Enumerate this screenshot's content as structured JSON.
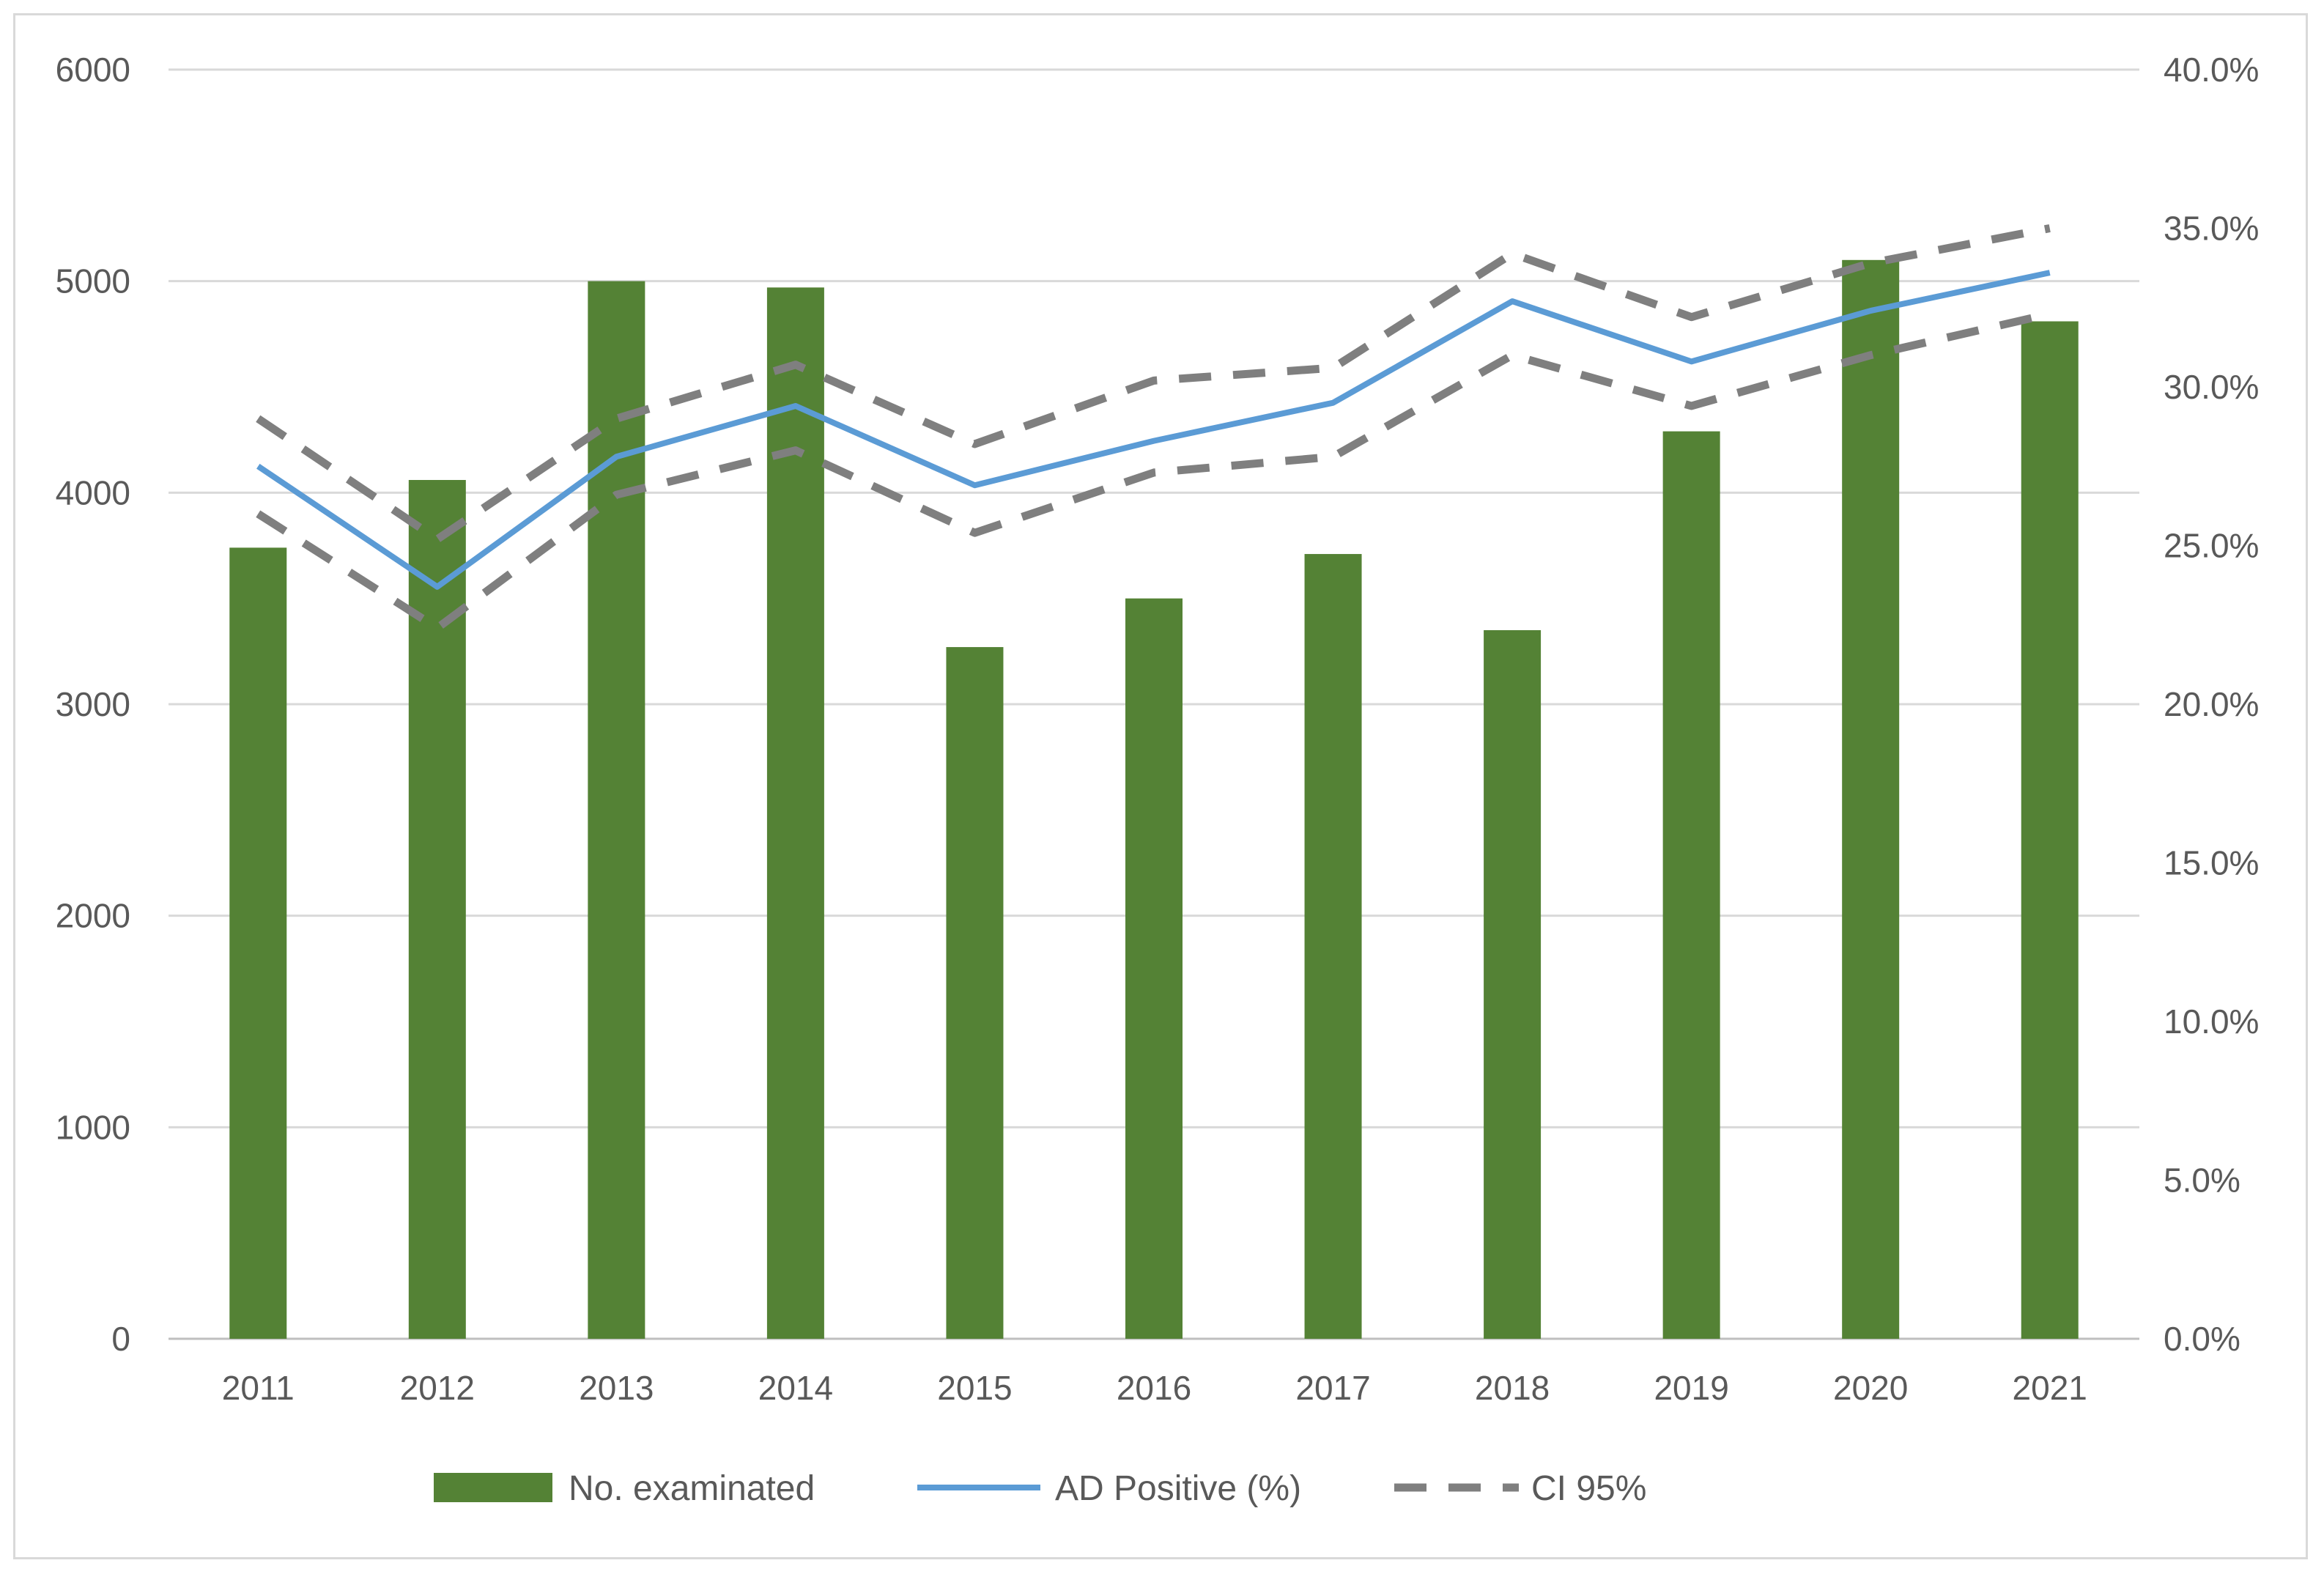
{
  "chart_data": {
    "type": "bar",
    "categories": [
      "2011",
      "2012",
      "2013",
      "2014",
      "2015",
      "2016",
      "2017",
      "2018",
      "2019",
      "2020",
      "2021"
    ],
    "series": [
      {
        "name": "No. examinated",
        "type": "bar",
        "axis": "left",
        "color": "#548235",
        "values": [
          3740,
          4060,
          5000,
          4970,
          3270,
          3500,
          3710,
          3350,
          4290,
          5100,
          4810
        ]
      },
      {
        "name": "AD Positive (%)",
        "type": "line",
        "axis": "right",
        "color": "#5b9bd5",
        "values": [
          27.5,
          23.7,
          27.8,
          29.4,
          26.9,
          28.3,
          29.5,
          32.7,
          30.8,
          32.4,
          33.6
        ]
      },
      {
        "name": "CI 95%",
        "type": "line-dashed",
        "axis": "right",
        "color": "#7f7f7f",
        "upper": [
          29.0,
          25.2,
          29.0,
          30.7,
          28.2,
          30.2,
          30.6,
          34.2,
          32.2,
          33.9,
          35.0
        ],
        "lower": [
          26.0,
          22.4,
          26.6,
          28.0,
          25.4,
          27.3,
          27.8,
          31.0,
          29.4,
          31.0,
          32.3
        ]
      }
    ],
    "y_left": {
      "ylim": [
        0,
        6000
      ],
      "ticks": [
        0,
        1000,
        2000,
        3000,
        4000,
        5000,
        6000
      ],
      "tick_labels": [
        "0",
        "1000",
        "2000",
        "3000",
        "4000",
        "5000",
        "6000"
      ]
    },
    "y_right": {
      "ylim": [
        0,
        40
      ],
      "ticks": [
        0,
        5,
        10,
        15,
        20,
        25,
        30,
        35,
        40
      ],
      "tick_labels": [
        "0.0%",
        "5.0%",
        "10.0%",
        "15.0%",
        "20.0%",
        "25.0%",
        "30.0%",
        "35.0%",
        "40.0%"
      ]
    },
    "grid": true,
    "legend": {
      "position": "bottom-center",
      "entries": [
        "No. examinated",
        "AD Positive (%)",
        "CI 95%"
      ]
    },
    "title": "",
    "xlabel": "",
    "ylabel": ""
  },
  "colors": {
    "grid": "#d9d9d9",
    "text": "#595959",
    "axis": "#bfbfbf"
  }
}
